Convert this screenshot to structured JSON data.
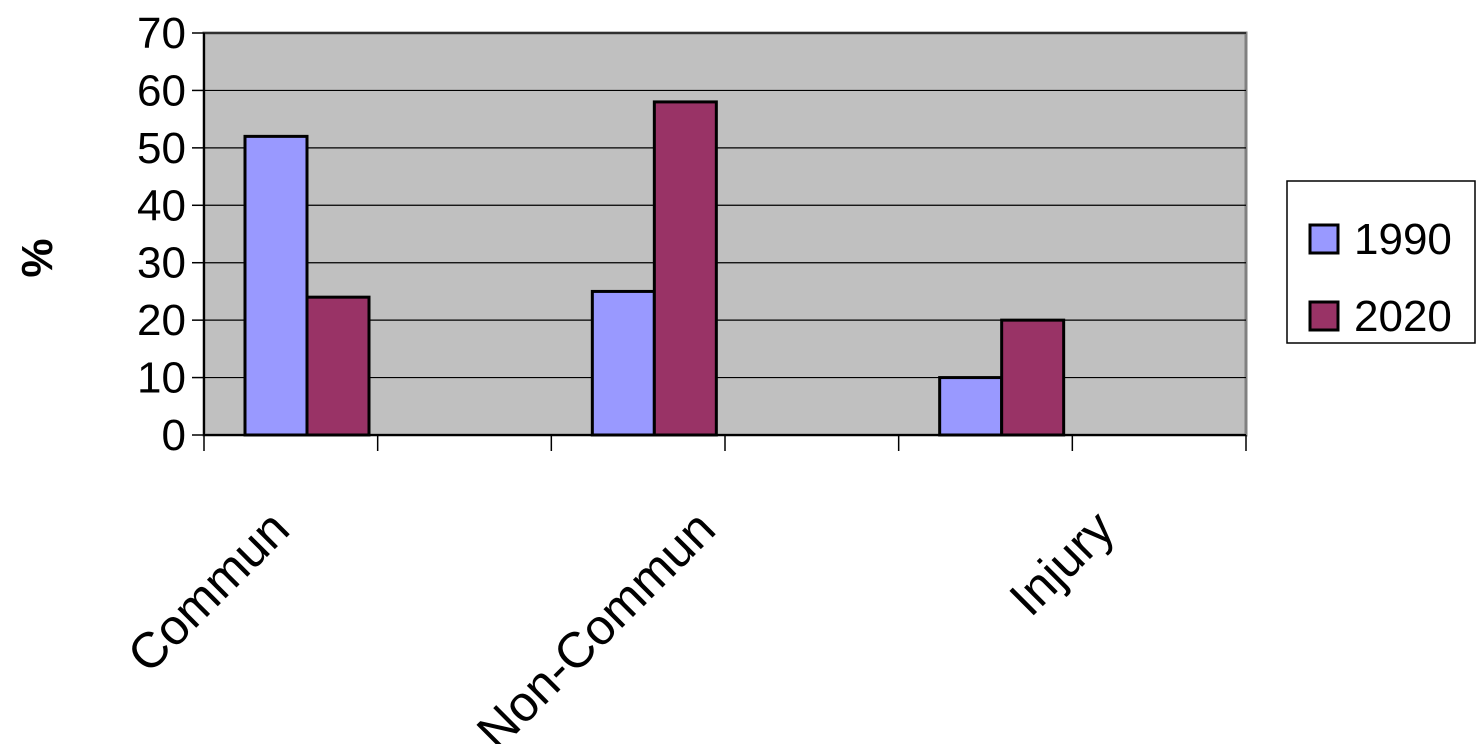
{
  "chart_data": {
    "type": "bar",
    "categories": [
      "Commun",
      "Non-Commun",
      "Injury"
    ],
    "series": [
      {
        "name": "1990",
        "values": [
          52,
          25,
          10
        ],
        "color": "#9999ff"
      },
      {
        "name": "2020",
        "values": [
          24,
          58,
          20
        ],
        "color": "#993366"
      }
    ],
    "ylabel": "%",
    "xlabel": "",
    "title": "",
    "ylim": [
      0,
      70
    ],
    "yticks": [
      0,
      10,
      20,
      30,
      40,
      50,
      60,
      70
    ],
    "grid": true,
    "plot_background": "#c0c0c0",
    "legend_position": "right"
  }
}
